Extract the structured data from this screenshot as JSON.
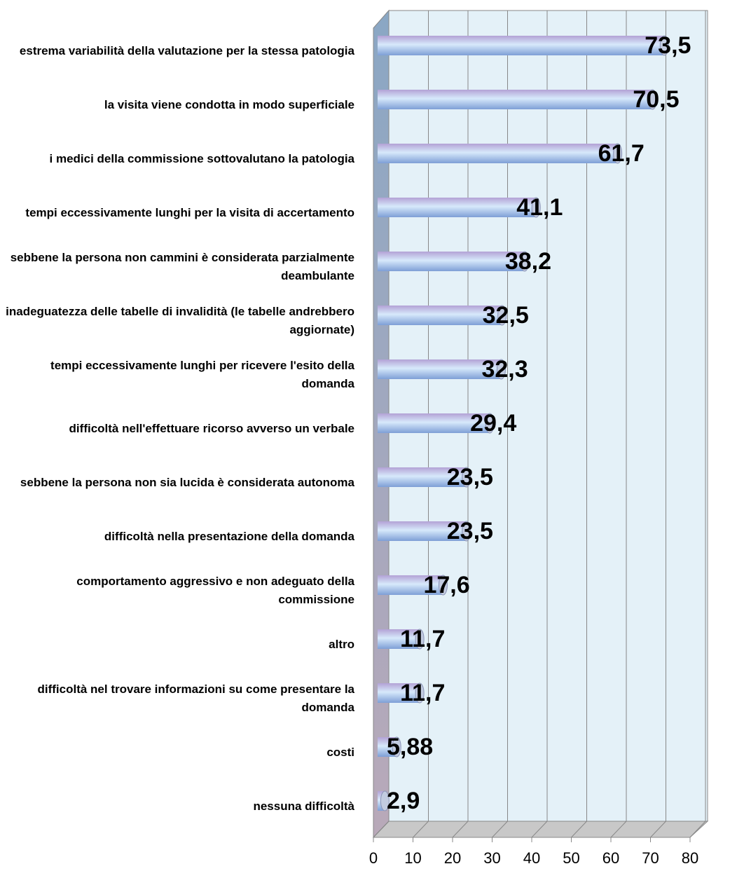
{
  "chart_data": {
    "type": "bar",
    "orientation": "horizontal",
    "categories": [
      "estrema variabilità della valutazione per la stessa patologia",
      "la visita viene condotta in modo superficiale",
      "i medici della commissione sottovalutano la patologia",
      "tempi eccessivamente lunghi per la visita di accertamento",
      "sebbene la persona non cammini è considerata parzialmente deambulante",
      "inadeguatezza delle tabelle di invalidità (le tabelle andrebbero aggiornate)",
      "tempi eccessivamente lunghi per ricevere l'esito della domanda",
      "difficoltà nell'effettuare ricorso avverso un verbale",
      "sebbene la persona non sia lucida è considerata autonoma",
      "difficoltà nella presentazione della domanda",
      "comportamento aggressivo e non adeguato della commissione",
      "altro",
      "difficoltà nel trovare informazioni su come presentare la domanda",
      "costi",
      "nessuna difficoltà"
    ],
    "values": [
      73.5,
      70.5,
      61.7,
      41.1,
      38.2,
      32.5,
      32.3,
      29.4,
      23.5,
      23.5,
      17.6,
      11.7,
      11.7,
      5.88,
      2.9
    ],
    "value_labels": [
      "73,5",
      "70,5",
      "61,7",
      "41,1",
      "38,2",
      "32,5",
      "32,3",
      "29,4",
      "23,5",
      "23,5",
      "17,6",
      "11,7",
      "11,7",
      "5,88",
      "2,9"
    ],
    "xlim": [
      0,
      80
    ],
    "xticks": [
      0,
      10,
      20,
      30,
      40,
      50,
      60,
      70,
      80
    ],
    "grid": true,
    "color": "#a9c8ee"
  }
}
